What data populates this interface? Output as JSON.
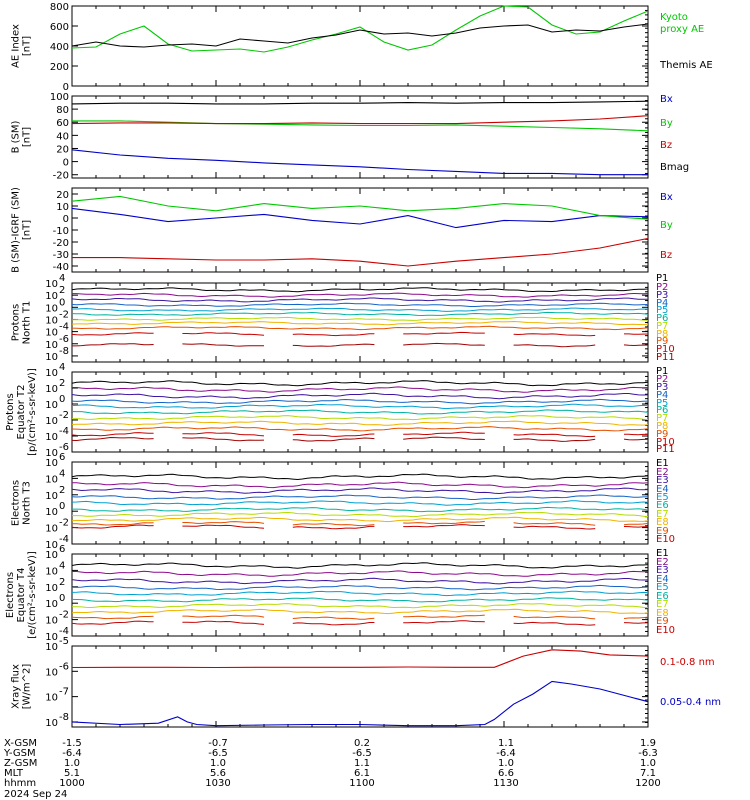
{
  "colors": {
    "black": "#000000",
    "green": "#00c800",
    "red": "#c80000",
    "blue": "#0000c8",
    "p1": "#000000",
    "p2": "#8b0a8b",
    "p3": "#3c14a0",
    "p4": "#1464c8",
    "p5": "#00a0d2",
    "p6": "#00b4a0",
    "p7": "#b4dc00",
    "p8": "#f0b400",
    "p9": "#e65000",
    "p10": "#c80000",
    "p11": "#a00000"
  },
  "chart_data": [
    {
      "type": "line",
      "panel": "ae",
      "ylabel": [
        "AE Index",
        "[nT]"
      ],
      "ylim": [
        0,
        800
      ],
      "log": false,
      "ticks": [
        "0",
        "200",
        "400",
        "600",
        "800"
      ],
      "tick_values": [
        0,
        200,
        400,
        600,
        800
      ],
      "legend": [
        "Kyoto",
        "proxy AE",
        "Themis AE"
      ],
      "series": [
        {
          "name": "Kyoto proxy AE",
          "color": "green",
          "x": [
            0,
            5,
            10,
            15,
            20,
            25,
            30,
            35,
            40,
            45,
            50,
            55,
            60,
            65,
            70,
            75,
            80,
            85,
            90,
            95,
            100,
            105,
            110,
            115,
            120
          ],
          "values": [
            380,
            390,
            520,
            600,
            420,
            350,
            360,
            370,
            340,
            390,
            460,
            520,
            590,
            440,
            360,
            410,
            560,
            700,
            800,
            790,
            610,
            520,
            540,
            650,
            750
          ]
        },
        {
          "name": "Themis AE",
          "color": "black",
          "x": [
            0,
            5,
            10,
            15,
            20,
            25,
            30,
            35,
            40,
            45,
            50,
            55,
            60,
            65,
            70,
            75,
            80,
            85,
            90,
            95,
            100,
            105,
            110,
            115,
            120
          ],
          "values": [
            400,
            440,
            400,
            390,
            410,
            420,
            400,
            470,
            450,
            430,
            480,
            510,
            560,
            520,
            530,
            500,
            530,
            580,
            600,
            610,
            540,
            560,
            550,
            590,
            620
          ]
        }
      ]
    },
    {
      "type": "line",
      "panel": "b",
      "ylabel": [
        "B (SM)",
        "[nT]"
      ],
      "ylim": [
        -25,
        100
      ],
      "log": false,
      "ticks": [
        "-20",
        "0",
        "20",
        "40",
        "60",
        "80",
        "100"
      ],
      "tick_values": [
        -20,
        0,
        20,
        40,
        60,
        80,
        100
      ],
      "legend": [
        "Bx",
        "By",
        "Bz",
        "Bmag"
      ],
      "series": [
        {
          "name": "Bx",
          "color": "blue",
          "x": [
            0,
            10,
            20,
            30,
            40,
            50,
            60,
            70,
            80,
            90,
            100,
            110,
            120
          ],
          "values": [
            18,
            10,
            5,
            2,
            -2,
            -5,
            -8,
            -12,
            -15,
            -18,
            -18,
            -20,
            -20
          ]
        },
        {
          "name": "By",
          "color": "green",
          "x": [
            0,
            10,
            20,
            30,
            40,
            50,
            60,
            70,
            80,
            90,
            100,
            110,
            120
          ],
          "values": [
            62,
            62,
            60,
            58,
            57,
            56,
            55,
            55,
            56,
            54,
            52,
            50,
            47
          ]
        },
        {
          "name": "Bz",
          "color": "red",
          "x": [
            0,
            10,
            20,
            30,
            40,
            50,
            60,
            70,
            80,
            90,
            100,
            110,
            120
          ],
          "values": [
            58,
            59,
            59,
            58,
            58,
            59,
            58,
            58,
            58,
            60,
            62,
            65,
            70
          ]
        },
        {
          "name": "Bmag",
          "color": "black",
          "x": [
            0,
            10,
            20,
            30,
            40,
            50,
            60,
            70,
            80,
            90,
            100,
            110,
            120
          ],
          "values": [
            88,
            89,
            89,
            88,
            88,
            89,
            89,
            90,
            89,
            90,
            90,
            91,
            92
          ]
        }
      ]
    },
    {
      "type": "line",
      "panel": "db",
      "ylabel": [
        "B (SM)-IGRF (SM)",
        "[nT]"
      ],
      "ylim": [
        -45,
        25
      ],
      "log": false,
      "ticks": [
        "-40",
        "-30",
        "-20",
        "-10",
        "0",
        "10",
        "20"
      ],
      "tick_values": [
        -40,
        -30,
        -20,
        -10,
        0,
        10,
        20
      ],
      "legend": [
        "Bx",
        "By",
        "Bz"
      ],
      "series": [
        {
          "name": "Bx",
          "color": "blue",
          "x": [
            0,
            10,
            20,
            30,
            40,
            50,
            60,
            70,
            80,
            90,
            100,
            110,
            120
          ],
          "values": [
            8,
            3,
            -3,
            0,
            3,
            -2,
            -5,
            2,
            -8,
            -2,
            -3,
            2,
            1
          ]
        },
        {
          "name": "By",
          "color": "green",
          "x": [
            0,
            10,
            20,
            30,
            40,
            50,
            60,
            70,
            80,
            90,
            100,
            110,
            120
          ],
          "values": [
            14,
            18,
            10,
            6,
            12,
            8,
            10,
            6,
            8,
            12,
            10,
            2,
            -1
          ]
        },
        {
          "name": "Bz",
          "color": "red",
          "x": [
            0,
            10,
            20,
            30,
            40,
            50,
            60,
            70,
            80,
            90,
            100,
            110,
            120
          ],
          "values": [
            -33,
            -33,
            -34,
            -35,
            -35,
            -34,
            -36,
            -40,
            -36,
            -33,
            -30,
            -25,
            -17
          ]
        }
      ]
    },
    {
      "type": "line",
      "panel": "pn",
      "ylabel": [
        "Protons",
        "North T1"
      ],
      "ylim": [
        -9,
        4
      ],
      "log": true,
      "ticks": [
        "10",
        "10",
        "10",
        "10",
        "10",
        "10",
        "10"
      ],
      "tick_exponents": [
        "-8",
        "-6",
        "-4",
        "-2",
        "0",
        "2",
        "4"
      ],
      "tick_values": [
        -8,
        -6,
        -4,
        -2,
        0,
        2,
        4
      ],
      "legend": [
        "P1",
        "P2",
        "P3",
        "P4",
        "P5",
        "P6",
        "P7",
        "P8",
        "P9",
        "P10",
        "P11"
      ],
      "levels": [
        2.9,
        2.0,
        1.2,
        0.4,
        -0.4,
        -1.1,
        -1.9,
        -2.6,
        -3.4,
        -4.4,
        -6.2
      ],
      "colors": [
        "p1",
        "p2",
        "p3",
        "p4",
        "p5",
        "p6",
        "p7",
        "p8",
        "p9",
        "p10",
        "p11"
      ]
    },
    {
      "type": "line",
      "panel": "pe",
      "ylabel": [
        "Protons",
        "Equator T2",
        "[p/(cm²-s-sr-keV)]"
      ],
      "ylim": [
        -6,
        4
      ],
      "log": true,
      "ticks": [
        "10",
        "10",
        "10",
        "10",
        "10",
        "10"
      ],
      "tick_exponents": [
        "-6",
        "-4",
        "-2",
        "0",
        "2",
        "4"
      ],
      "tick_values": [
        -6,
        -4,
        -2,
        0,
        2,
        4
      ],
      "legend": [
        "P1",
        "P2",
        "P3",
        "P4",
        "P5",
        "P6",
        "P7",
        "P8",
        "P9",
        "P10",
        "P11"
      ],
      "levels": [
        2.6,
        1.8,
        1.0,
        0.3,
        -0.3,
        -1.0,
        -1.7,
        -2.4,
        -3.1,
        -3.8,
        -4.4
      ],
      "colors": [
        "p1",
        "p2",
        "p3",
        "p4",
        "p5",
        "p6",
        "p7",
        "p8",
        "p9",
        "p10",
        "p11"
      ]
    },
    {
      "type": "line",
      "panel": "en",
      "ylabel": [
        "Electrons",
        "North T3"
      ],
      "ylim": [
        -4,
        6
      ],
      "log": true,
      "ticks": [
        "10",
        "10",
        "10",
        "10",
        "10",
        "10"
      ],
      "tick_exponents": [
        "-4",
        "-2",
        "0",
        "2",
        "4",
        "6"
      ],
      "tick_values": [
        -4,
        -2,
        0,
        2,
        4,
        6
      ],
      "legend": [
        "E1",
        "E2",
        "E3",
        "E4",
        "E5",
        "E6",
        "E7",
        "E8",
        "E9",
        "E10"
      ],
      "levels": [
        4.2,
        3.2,
        2.5,
        1.7,
        1.0,
        0.2,
        -0.4,
        -1.0,
        -1.5,
        -1.9
      ],
      "colors": [
        "p1",
        "p2",
        "p3",
        "p4",
        "p5",
        "p6",
        "p7",
        "p8",
        "p9",
        "p10"
      ]
    },
    {
      "type": "line",
      "panel": "ee",
      "ylabel": [
        "Electrons",
        "Equator T4",
        "[e/(cm²-s-sr-keV)]"
      ],
      "ylim": [
        -4,
        6
      ],
      "log": true,
      "ticks": [
        "10",
        "10",
        "10",
        "10",
        "10",
        "10"
      ],
      "tick_exponents": [
        "-4",
        "-2",
        "0",
        "2",
        "4",
        "6"
      ],
      "tick_values": [
        -4,
        -2,
        0,
        2,
        4,
        6
      ],
      "legend": [
        "E1",
        "E2",
        "E3",
        "E4",
        "E5",
        "E6",
        "E7",
        "E8",
        "E9",
        "E10"
      ],
      "levels": [
        4.6,
        3.6,
        2.7,
        1.9,
        1.2,
        0.4,
        -0.3,
        -1.0,
        -1.7,
        -2.4
      ],
      "colors": [
        "p1",
        "p2",
        "p3",
        "p4",
        "p5",
        "p6",
        "p7",
        "p8",
        "p9",
        "p10"
      ]
    },
    {
      "type": "line",
      "panel": "xr",
      "ylabel": [
        "Xray flux",
        "[W/m^2]"
      ],
      "ylim": [
        -8.2,
        -5
      ],
      "log": true,
      "ticks": [
        "10",
        "10",
        "10",
        "10"
      ],
      "tick_exponents": [
        "-8",
        "-7",
        "-6",
        "-5"
      ],
      "tick_values": [
        -8,
        -7,
        -6,
        -5
      ],
      "legend": [
        "0.1-0.8 nm",
        "0.05-0.4 nm"
      ],
      "series": [
        {
          "name": "0.1-0.8 nm",
          "color": "red",
          "x": [
            0,
            10,
            20,
            30,
            40,
            50,
            60,
            70,
            80,
            88,
            94,
            100,
            106,
            112,
            120
          ],
          "values": [
            -5.85,
            -5.84,
            -5.84,
            -5.85,
            -5.84,
            -5.84,
            -5.84,
            -5.83,
            -5.84,
            -5.84,
            -5.4,
            -5.15,
            -5.2,
            -5.35,
            -5.4
          ]
        },
        {
          "name": "0.05-0.4 nm",
          "color": "blue",
          "x": [
            0,
            10,
            18,
            22,
            24,
            26,
            30,
            40,
            50,
            60,
            70,
            80,
            86,
            88,
            92,
            96,
            100,
            104,
            110,
            116,
            120
          ],
          "values": [
            -8.0,
            -8.1,
            -8.05,
            -7.8,
            -8.0,
            -8.1,
            -8.15,
            -8.12,
            -8.1,
            -8.1,
            -8.15,
            -8.15,
            -8.1,
            -7.9,
            -7.3,
            -6.9,
            -6.4,
            -6.5,
            -6.7,
            -7.0,
            -7.2
          ]
        }
      ]
    }
  ],
  "ephemeris": {
    "rows": [
      {
        "label": "X-GSM",
        "values": [
          "-1.5",
          "-0.7",
          "0.2",
          "1.1",
          "1.9"
        ]
      },
      {
        "label": "Y-GSM",
        "values": [
          "-6.4",
          "-6.5",
          "-6.5",
          "-6.4",
          "-6.3"
        ]
      },
      {
        "label": "Z-GSM",
        "values": [
          "1.0",
          "1.0",
          "1.1",
          "1.0",
          "1.0"
        ]
      },
      {
        "label": "MLT",
        "values": [
          "5.1",
          "5.6",
          "6.1",
          "6.6",
          "7.1"
        ]
      },
      {
        "label": "hhmm",
        "values": [
          "1000",
          "1030",
          "1100",
          "1130",
          "1200"
        ]
      }
    ],
    "date": "2024 Sep 24"
  }
}
